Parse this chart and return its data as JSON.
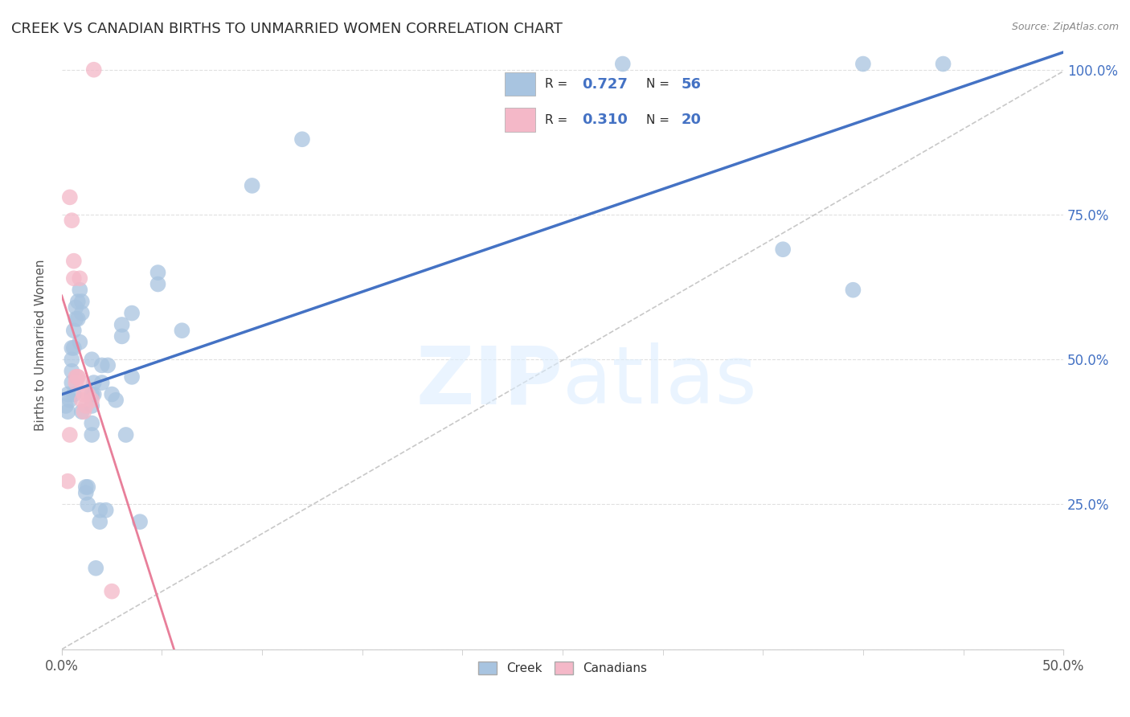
{
  "title": "CREEK VS CANADIAN BIRTHS TO UNMARRIED WOMEN CORRELATION CHART",
  "source": "Source: ZipAtlas.com",
  "ylabel": "Births to Unmarried Women",
  "xmin": 0.0,
  "xmax": 0.5,
  "ymin": 0.0,
  "ymax": 1.05,
  "xtick_positions": [
    0.0,
    0.5
  ],
  "xtick_labels": [
    "0.0%",
    "50.0%"
  ],
  "yticks": [
    0.0,
    0.25,
    0.5,
    0.75,
    1.0
  ],
  "ytick_labels": [
    "",
    "25.0%",
    "50.0%",
    "75.0%",
    "100.0%"
  ],
  "creek_color": "#a8c4e0",
  "canadian_color": "#f4b8c8",
  "creek_line_color": "#4472c4",
  "canadian_line_color": "#e87f9a",
  "diagonal_color": "#c8c8c8",
  "background_color": "#ffffff",
  "grid_color": "#e0e0e0",
  "creek_R": 0.727,
  "creek_N": 56,
  "canadian_R": 0.31,
  "canadian_N": 20,
  "legend_color_blue": "#4472c4",
  "legend_color_dark": "#2d2d2d",
  "creek_points": [
    [
      0.002,
      0.42
    ],
    [
      0.003,
      0.44
    ],
    [
      0.003,
      0.41
    ],
    [
      0.004,
      0.43
    ],
    [
      0.005,
      0.46
    ],
    [
      0.005,
      0.48
    ],
    [
      0.005,
      0.52
    ],
    [
      0.005,
      0.5
    ],
    [
      0.006,
      0.44
    ],
    [
      0.006,
      0.52
    ],
    [
      0.006,
      0.55
    ],
    [
      0.007,
      0.57
    ],
    [
      0.007,
      0.59
    ],
    [
      0.008,
      0.57
    ],
    [
      0.008,
      0.6
    ],
    [
      0.009,
      0.53
    ],
    [
      0.009,
      0.62
    ],
    [
      0.01,
      0.6
    ],
    [
      0.01,
      0.58
    ],
    [
      0.01,
      0.41
    ],
    [
      0.012,
      0.28
    ],
    [
      0.012,
      0.27
    ],
    [
      0.013,
      0.25
    ],
    [
      0.013,
      0.28
    ],
    [
      0.015,
      0.5
    ],
    [
      0.015,
      0.44
    ],
    [
      0.015,
      0.42
    ],
    [
      0.015,
      0.39
    ],
    [
      0.015,
      0.37
    ],
    [
      0.016,
      0.44
    ],
    [
      0.016,
      0.46
    ],
    [
      0.017,
      0.14
    ],
    [
      0.019,
      0.24
    ],
    [
      0.019,
      0.22
    ],
    [
      0.02,
      0.46
    ],
    [
      0.02,
      0.49
    ],
    [
      0.022,
      0.24
    ],
    [
      0.023,
      0.49
    ],
    [
      0.025,
      0.44
    ],
    [
      0.027,
      0.43
    ],
    [
      0.03,
      0.56
    ],
    [
      0.03,
      0.54
    ],
    [
      0.032,
      0.37
    ],
    [
      0.035,
      0.58
    ],
    [
      0.035,
      0.47
    ],
    [
      0.039,
      0.22
    ],
    [
      0.048,
      0.63
    ],
    [
      0.048,
      0.65
    ],
    [
      0.06,
      0.55
    ],
    [
      0.095,
      0.8
    ],
    [
      0.12,
      0.88
    ],
    [
      0.28,
      1.01
    ],
    [
      0.36,
      0.69
    ],
    [
      0.395,
      0.62
    ],
    [
      0.4,
      1.01
    ],
    [
      0.44,
      1.01
    ]
  ],
  "canadian_points": [
    [
      0.003,
      0.29
    ],
    [
      0.004,
      0.37
    ],
    [
      0.004,
      0.78
    ],
    [
      0.005,
      0.74
    ],
    [
      0.006,
      0.64
    ],
    [
      0.006,
      0.67
    ],
    [
      0.007,
      0.46
    ],
    [
      0.007,
      0.47
    ],
    [
      0.008,
      0.47
    ],
    [
      0.008,
      0.47
    ],
    [
      0.009,
      0.64
    ],
    [
      0.01,
      0.46
    ],
    [
      0.01,
      0.43
    ],
    [
      0.011,
      0.41
    ],
    [
      0.011,
      0.44
    ],
    [
      0.012,
      0.42
    ],
    [
      0.013,
      0.44
    ],
    [
      0.015,
      0.43
    ],
    [
      0.016,
      1.0
    ],
    [
      0.025,
      0.1
    ]
  ],
  "creek_line_x_start": 0.0,
  "creek_line_x_end": 0.5,
  "canadian_line_x_start": 0.0,
  "canadian_line_x_end": 0.5
}
